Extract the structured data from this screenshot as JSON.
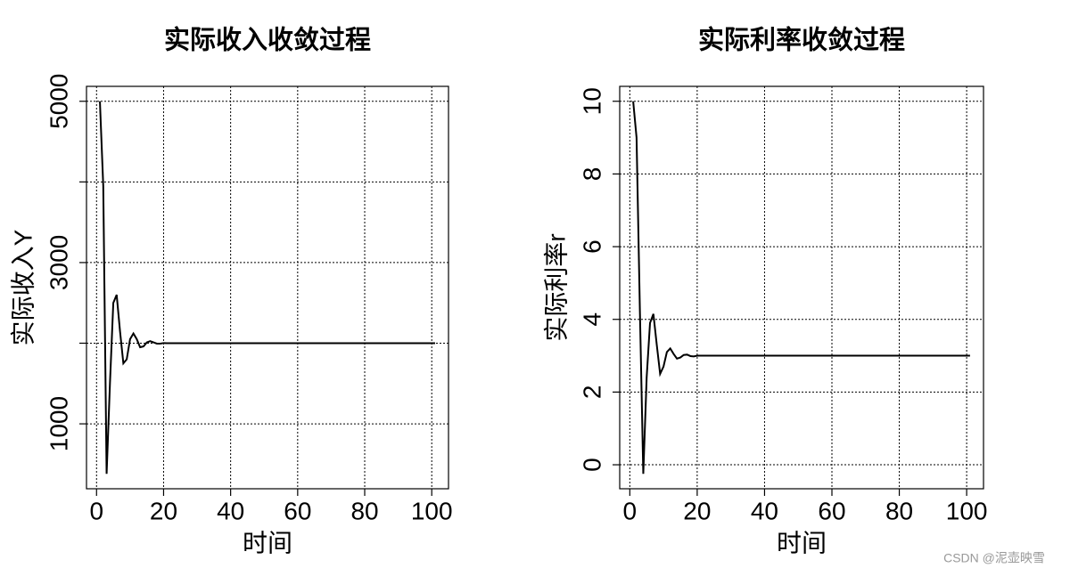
{
  "chart_data": [
    {
      "type": "line",
      "title": "实际收入收敛过程",
      "xlabel": "时间",
      "ylabel": "实际收入Y",
      "color": "#000000",
      "grid": true,
      "x": [
        1,
        2,
        3,
        4,
        5,
        6,
        7,
        8,
        9,
        10,
        11,
        12,
        13,
        14,
        15,
        16,
        17,
        18,
        19,
        20,
        21,
        22,
        23,
        24,
        25,
        26,
        27,
        28,
        29,
        30,
        31,
        32,
        33,
        34,
        35,
        36,
        37,
        38,
        39,
        40,
        41,
        42,
        43,
        44,
        45,
        46,
        47,
        48,
        49,
        50,
        51,
        52,
        53,
        54,
        55,
        56,
        57,
        58,
        59,
        60,
        61,
        62,
        63,
        64,
        65,
        66,
        67,
        68,
        69,
        70,
        71,
        72,
        73,
        74,
        75,
        76,
        77,
        78,
        79,
        80,
        81,
        82,
        83,
        84,
        85,
        86,
        87,
        88,
        89,
        90,
        91,
        92,
        93,
        94,
        95,
        96,
        97,
        98,
        99,
        100,
        101
      ],
      "values": [
        5000,
        3950,
        380,
        1500,
        2500,
        2600,
        2150,
        1750,
        1800,
        2050,
        2120,
        2050,
        1950,
        1960,
        2010,
        2025,
        2010,
        1995,
        1995,
        2002,
        2000,
        2000,
        2000,
        2000,
        2000,
        2000,
        2000,
        2000,
        2000,
        2000,
        2000,
        2000,
        2000,
        2000,
        2000,
        2000,
        2000,
        2000,
        2000,
        2000,
        2000,
        2000,
        2000,
        2000,
        2000,
        2000,
        2000,
        2000,
        2000,
        2000,
        2000,
        2000,
        2000,
        2000,
        2000,
        2000,
        2000,
        2000,
        2000,
        2000,
        2000,
        2000,
        2000,
        2000,
        2000,
        2000,
        2000,
        2000,
        2000,
        2000,
        2000,
        2000,
        2000,
        2000,
        2000,
        2000,
        2000,
        2000,
        2000,
        2000,
        2000,
        2000,
        2000,
        2000,
        2000,
        2000,
        2000,
        2000,
        2000,
        2000,
        2000,
        2000,
        2000,
        2000,
        2000,
        2000,
        2000,
        2000,
        2000,
        2000,
        2000
      ],
      "xlim": [
        -3,
        105
      ],
      "xticks": [
        0,
        20,
        40,
        60,
        80,
        100
      ],
      "ylim": [
        195,
        5185
      ],
      "yticks": [
        1000,
        {
          "value": 2000,
          "label": null
        },
        3000,
        {
          "value": 4000,
          "label": null
        },
        5000
      ]
    },
    {
      "type": "line",
      "title": "实际利率收敛过程",
      "xlabel": "时间",
      "ylabel": "实际利率r",
      "color": "#000000",
      "grid": true,
      "x": [
        1,
        2,
        3,
        4,
        5,
        6,
        7,
        8,
        9,
        10,
        11,
        12,
        13,
        14,
        15,
        16,
        17,
        18,
        19,
        20,
        21,
        22,
        23,
        24,
        25,
        26,
        27,
        28,
        29,
        30,
        31,
        32,
        33,
        34,
        35,
        36,
        37,
        38,
        39,
        40,
        41,
        42,
        43,
        44,
        45,
        46,
        47,
        48,
        49,
        50,
        51,
        52,
        53,
        54,
        55,
        56,
        57,
        58,
        59,
        60,
        61,
        62,
        63,
        64,
        65,
        66,
        67,
        68,
        69,
        70,
        71,
        72,
        73,
        74,
        75,
        76,
        77,
        78,
        79,
        80,
        81,
        82,
        83,
        84,
        85,
        86,
        87,
        88,
        89,
        90,
        91,
        92,
        93,
        94,
        95,
        96,
        97,
        98,
        99,
        100,
        101
      ],
      "values": [
        10,
        9,
        4.2,
        -0.25,
        2.4,
        3.9,
        4.15,
        3.3,
        2.5,
        2.7,
        3.1,
        3.2,
        3.05,
        2.92,
        2.95,
        3.02,
        3.03,
        2.99,
        2.98,
        3,
        3,
        3,
        3,
        3,
        3,
        3,
        3,
        3,
        3,
        3,
        3,
        3,
        3,
        3,
        3,
        3,
        3,
        3,
        3,
        3,
        3,
        3,
        3,
        3,
        3,
        3,
        3,
        3,
        3,
        3,
        3,
        3,
        3,
        3,
        3,
        3,
        3,
        3,
        3,
        3,
        3,
        3,
        3,
        3,
        3,
        3,
        3,
        3,
        3,
        3,
        3,
        3,
        3,
        3,
        3,
        3,
        3,
        3,
        3,
        3,
        3,
        3,
        3,
        3,
        3,
        3,
        3,
        3,
        3,
        3,
        3,
        3,
        3,
        3,
        3,
        3,
        3,
        3,
        3,
        3,
        3
      ],
      "xlim": [
        -3,
        105
      ],
      "xticks": [
        0,
        20,
        40,
        60,
        80,
        100
      ],
      "ylim": [
        -0.66,
        10.41
      ],
      "yticks": [
        0,
        2,
        4,
        6,
        8,
        10
      ]
    }
  ],
  "watermark": "CSDN @泥壶映雪"
}
